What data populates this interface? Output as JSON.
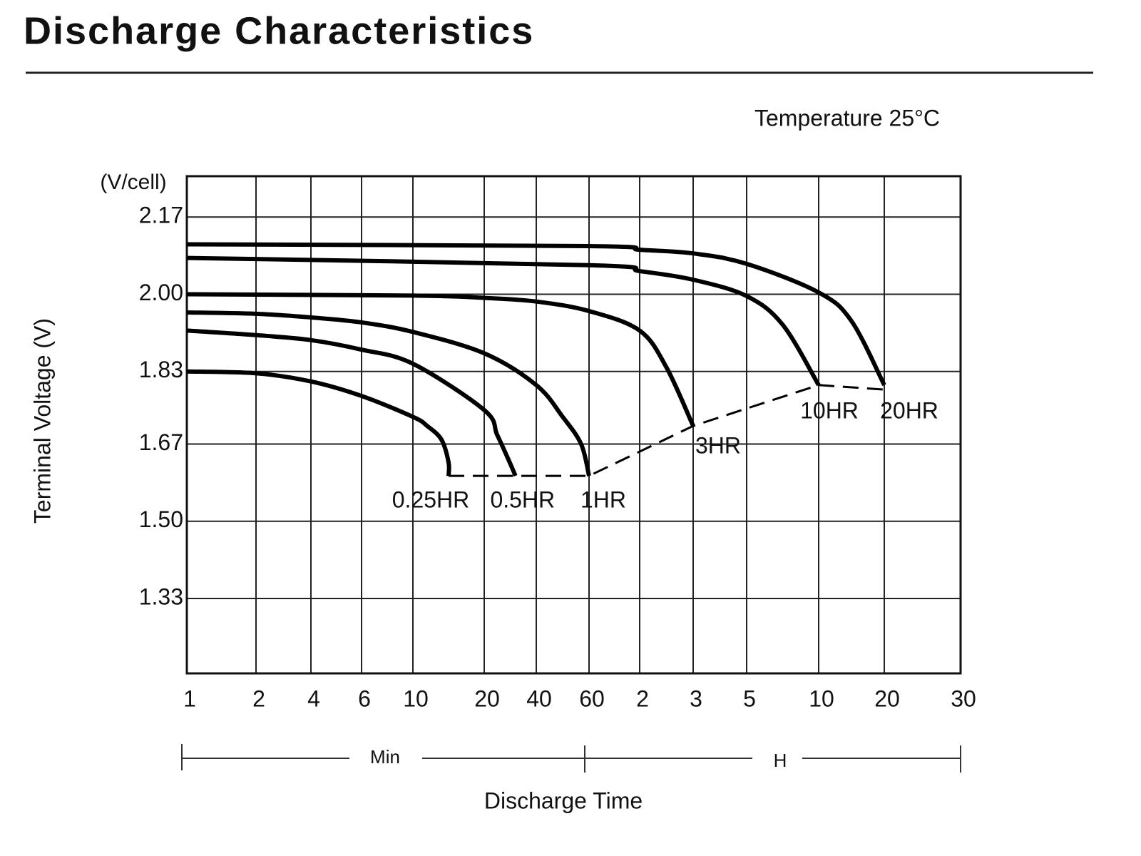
{
  "chart_data": {
    "type": "line",
    "title": "Discharge Characteristics",
    "subtitle": "Temperature 25°C",
    "y_unit_label": "(V/cell)",
    "ylabel": "Terminal Voltage (V)",
    "xlabel": "Discharge Time",
    "x_unit_labels": [
      "Min",
      "H"
    ],
    "ylim": [
      1.165,
      2.26
    ],
    "yticks": [
      2.17,
      {
        "value": 2,
        "label": "2.00"
      },
      1.83,
      1.67,
      {
        "value": 1.5,
        "label": "1.50"
      },
      1.33
    ],
    "xticks": [
      1,
      2,
      4,
      6,
      10,
      20,
      40,
      60,
      {
        "value": 120,
        "label": "2"
      },
      {
        "value": 180,
        "label": "3"
      },
      {
        "value": 300,
        "label": "5"
      },
      {
        "value": 600,
        "label": "10"
      },
      {
        "value": 1200,
        "label": "20"
      },
      {
        "value": 1800,
        "label": "30"
      }
    ],
    "grid": true,
    "series": [
      {
        "name": "0.25HR",
        "color": "#000000",
        "x": [
          1,
          2,
          4,
          6,
          10,
          12,
          14,
          15,
          15
        ],
        "values": [
          1.83,
          1.826,
          1.808,
          1.776,
          1.73,
          1.71,
          1.68,
          1.63,
          1.6
        ]
      },
      {
        "name": "0.5HR",
        "color": "#000000",
        "x": [
          1,
          2,
          4,
          6,
          10,
          20,
          25,
          30,
          32
        ],
        "values": [
          1.92,
          1.91,
          1.899,
          1.878,
          1.847,
          1.745,
          1.69,
          1.627,
          1.6
        ]
      },
      {
        "name": "1HR",
        "color": "#000000",
        "x": [
          1,
          2,
          4,
          6,
          10,
          20,
          40,
          50,
          57,
          60
        ],
        "values": [
          1.96,
          1.957,
          1.949,
          1.938,
          1.917,
          1.87,
          1.8,
          1.73,
          1.67,
          1.6
        ]
      },
      {
        "name": "3HR",
        "color": "#000000",
        "x": [
          1,
          10,
          20,
          40,
          60,
          120,
          150,
          180
        ],
        "values": [
          2.0,
          1.997,
          1.992,
          1.984,
          1.963,
          1.92,
          1.839,
          1.71
        ]
      },
      {
        "name": "10HR",
        "color": "#000000",
        "x": [
          1,
          60,
          120,
          180,
          300,
          450,
          600
        ],
        "values": [
          2.08,
          2.064,
          2.051,
          2.032,
          1.996,
          1.933,
          1.8
        ]
      },
      {
        "name": "20HR",
        "color": "#000000",
        "x": [
          1,
          60,
          120,
          180,
          300,
          600,
          900,
          1200
        ],
        "values": [
          2.11,
          2.106,
          2.098,
          2.09,
          2.067,
          2.004,
          1.941,
          1.8
        ]
      },
      {
        "color": "#000000",
        "dashed": true,
        "x": [
          15,
          32,
          60,
          180,
          600,
          1200
        ],
        "values": [
          1.6,
          1.6,
          1.6,
          1.71,
          1.8,
          1.79
        ]
      }
    ]
  }
}
